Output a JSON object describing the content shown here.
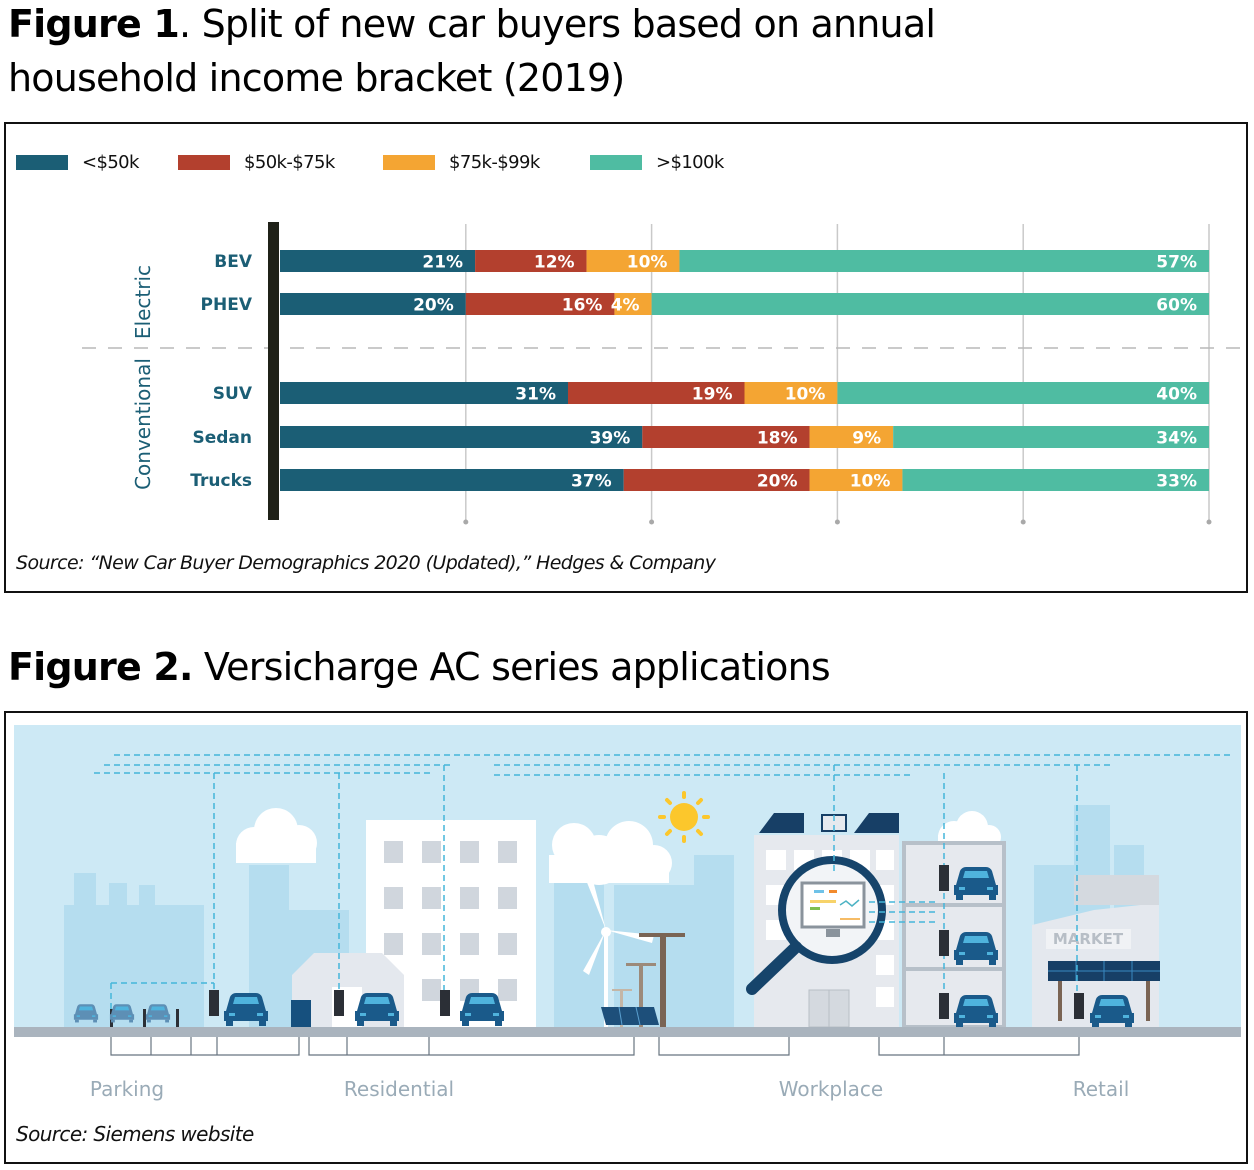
{
  "figure1": {
    "title_bold": "Figure 1",
    "title_rest": ". Split of new car buyers based on annual household income bracket (2019)",
    "source": "Source: “New Car Buyer Demographics 2020 (Updated),” Hedges & Company"
  },
  "figure2": {
    "title_bold": "Figure 2.",
    "title_rest": " Versicharge AC series applications",
    "source": "Source: Siemens website",
    "zone_labels": [
      "Parking",
      "Residential",
      "Workplace",
      "Retail"
    ],
    "sign_text": "MARKET"
  },
  "chart_data": {
    "type": "bar",
    "orientation": "horizontal",
    "stacked": true,
    "title": "Split of new car buyers based on annual household income bracket (2019)",
    "xlabel": "",
    "ylabel": "",
    "xlim": [
      0,
      100
    ],
    "unit": "%",
    "grid": true,
    "legend_position": "top-left",
    "groups": [
      {
        "name": "Electric",
        "categories": [
          "BEV",
          "PHEV"
        ]
      },
      {
        "name": "Conventional",
        "categories": [
          "SUV",
          "Sedan",
          "Trucks"
        ]
      }
    ],
    "categories": [
      "BEV",
      "PHEV",
      "SUV",
      "Sedan",
      "Trucks"
    ],
    "series": [
      {
        "name": "<$50k",
        "color": "#1b5e75",
        "values": [
          21,
          20,
          31,
          39,
          37
        ]
      },
      {
        "name": "$50k-$75k",
        "color": "#b3402e",
        "values": [
          12,
          16,
          19,
          18,
          20
        ]
      },
      {
        "name": "$75k-$99k",
        "color": "#f4a533",
        "values": [
          10,
          4,
          10,
          9,
          10
        ]
      },
      {
        "name": ">$100k",
        "color": "#4fbca2",
        "values": [
          57,
          60,
          40,
          34,
          33
        ]
      }
    ],
    "gridlines_at": [
      20,
      40,
      60,
      80,
      100
    ],
    "category_label_color": "#1b5e75"
  }
}
